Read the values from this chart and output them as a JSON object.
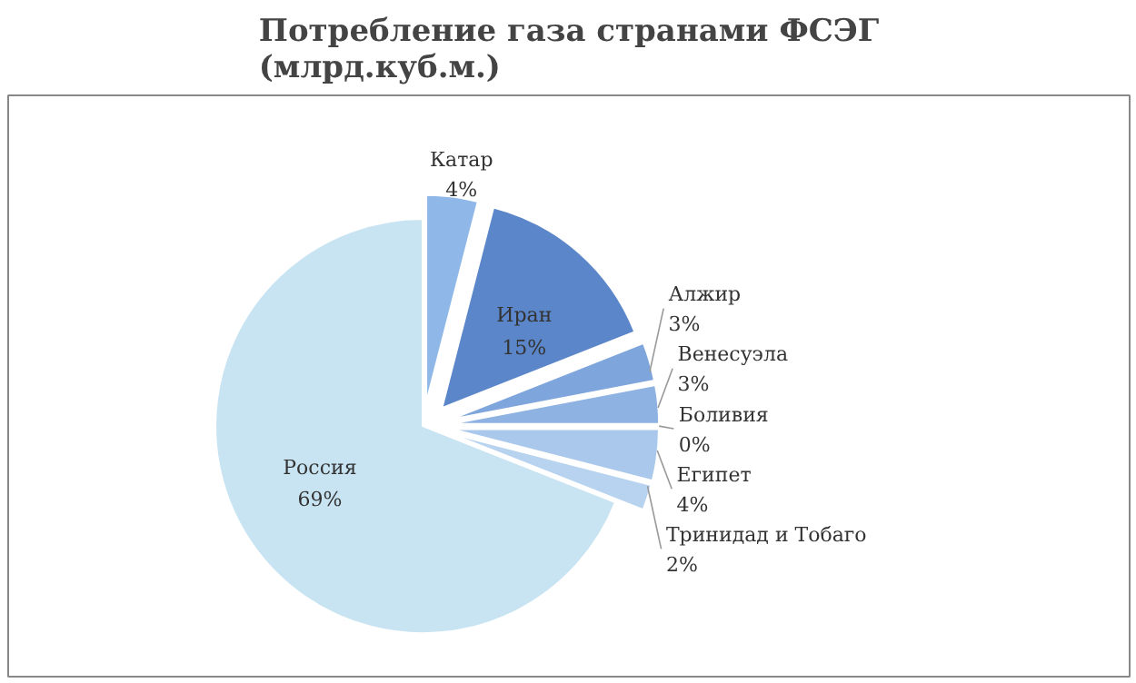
{
  "chart_data": {
    "type": "pie",
    "title": "Потребление газа странами ФСЭГ\n(млрд.куб.м.)",
    "categories": [
      "Катар",
      "Иран",
      "Алжир",
      "Венесуэла",
      "Боливия",
      "Египет",
      "Тринидад и Тобаго",
      "Россия"
    ],
    "values": [
      4,
      15,
      3,
      3,
      0,
      4,
      2,
      69
    ],
    "value_labels": [
      "4%",
      "15%",
      "3%",
      "3%",
      "0%",
      "4%",
      "2%",
      "69%"
    ],
    "colors": [
      "#8fb8e8",
      "#5b86c9",
      "#7fa6dc",
      "#8eb3e2",
      "#9fbfe6",
      "#a9c8ec",
      "#b8d3f0",
      "#c8e4f2"
    ]
  }
}
